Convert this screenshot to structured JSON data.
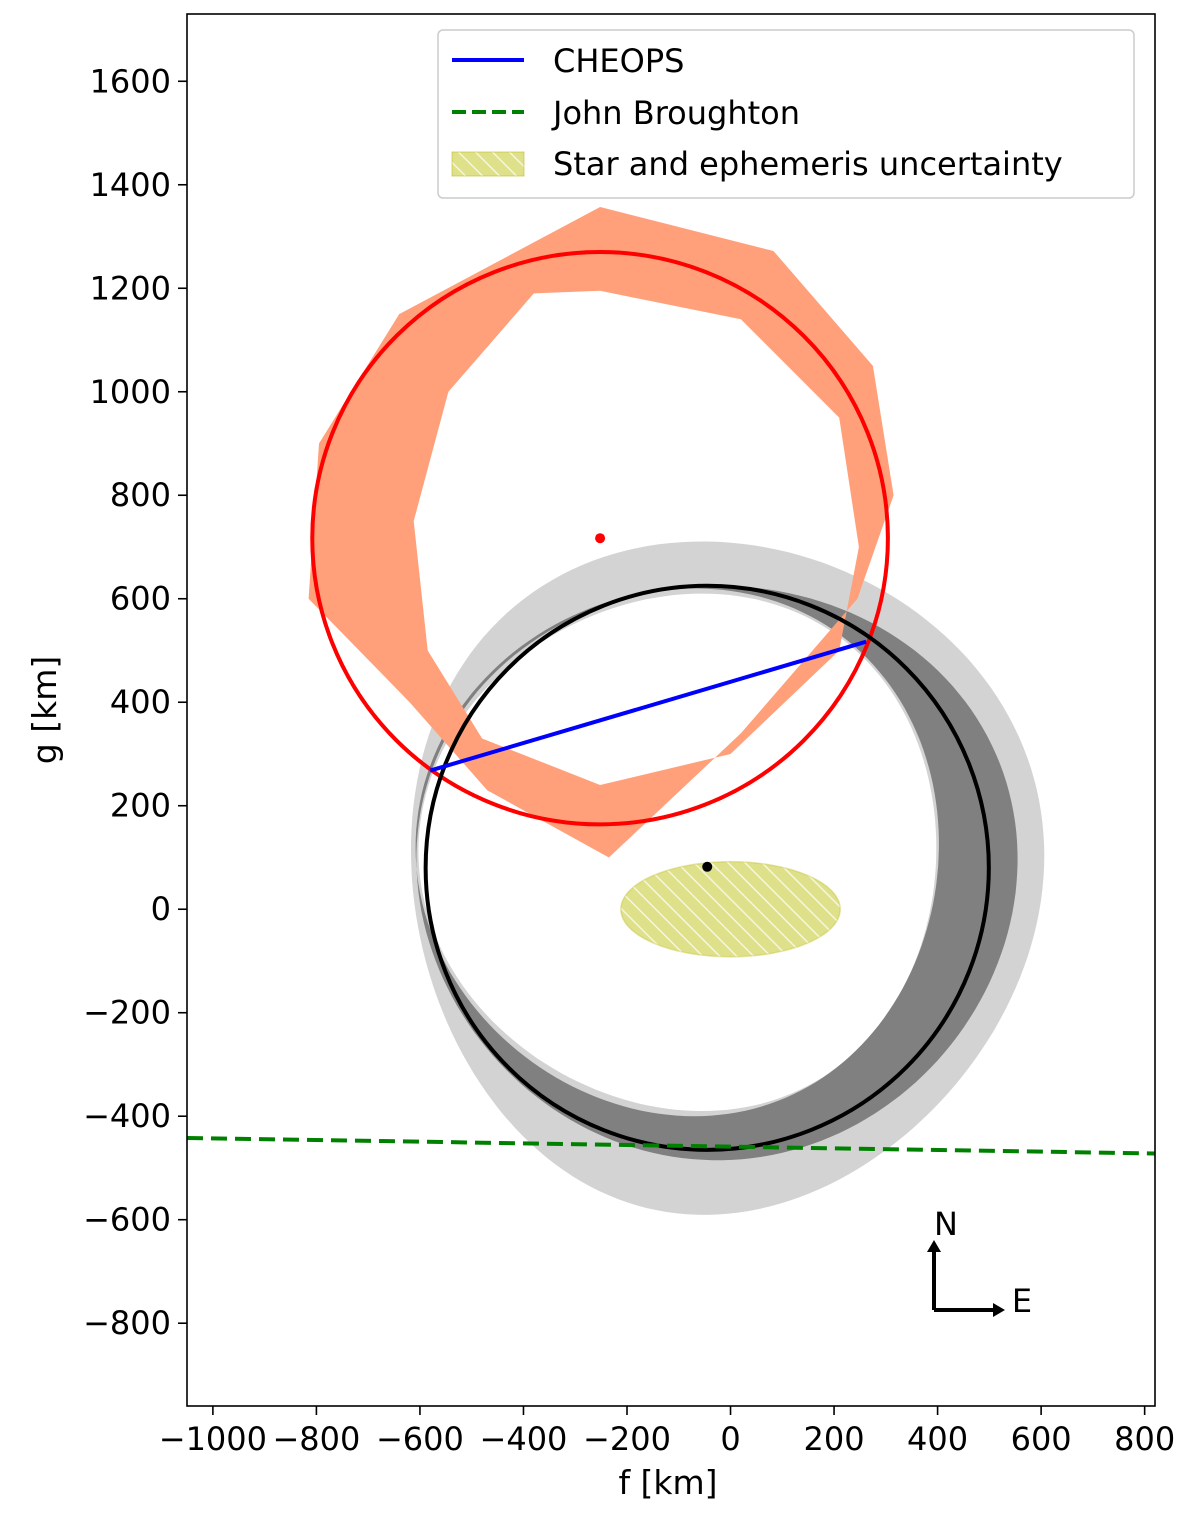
{
  "chart_data": {
    "type": "scatter",
    "title": "",
    "xlabel": "f [km]",
    "ylabel": "g [km]",
    "xlim": [
      -1050,
      820
    ],
    "ylim": [
      -960,
      1730
    ],
    "xticks": [
      -1000,
      -800,
      -600,
      -400,
      -200,
      0,
      200,
      400,
      600,
      800
    ],
    "yticks": [
      -800,
      -600,
      -400,
      -200,
      0,
      200,
      400,
      600,
      800,
      1000,
      1200,
      1400,
      1600
    ],
    "grid": false,
    "legend_position": "top-center",
    "legend": [
      {
        "label": "CHEOPS",
        "style": "solid-line",
        "color": "#0000ff"
      },
      {
        "label": "John Broughton",
        "style": "dashed-line",
        "color": "#008000"
      },
      {
        "label": "Star and ephemeris uncertainty",
        "style": "hatched-patch",
        "color": "#bcbd22"
      }
    ],
    "series": [
      {
        "name": "CHEOPS",
        "kind": "line",
        "color": "#0000ff",
        "x": [
          -580,
          262
        ],
        "y": [
          268,
          517
        ]
      },
      {
        "name": "John Broughton",
        "kind": "dashed-line",
        "color": "#008000",
        "x": [
          -1050,
          820
        ],
        "y": [
          -442,
          -472
        ]
      },
      {
        "name": "Star and ephemeris uncertainty",
        "kind": "ellipse",
        "color": "#bcbd22",
        "center": [
          0,
          0
        ],
        "semi_axes": [
          212,
          92
        ]
      }
    ],
    "fits": [
      {
        "kind": "ellipse",
        "color": "#ff0000",
        "center": [
          -252,
          717
        ],
        "semi_axes": [
          556,
          553
        ],
        "rotation_deg": 0,
        "band_color": "#ffa07a",
        "band_outer": [
          [
            -252,
            1357
          ],
          [
            83,
            1272
          ],
          [
            275,
            1050
          ],
          [
            315,
            800
          ],
          [
            245,
            600
          ],
          [
            20,
            340
          ],
          [
            -235,
            100
          ],
          [
            -470,
            230
          ],
          [
            -620,
            400
          ],
          [
            -815,
            600
          ],
          [
            -795,
            900
          ],
          [
            -640,
            1150
          ],
          [
            -252,
            1357
          ]
        ],
        "band_inner": [
          [
            -252,
            1195
          ],
          [
            20,
            1140
          ],
          [
            210,
            950
          ],
          [
            248,
            700
          ],
          [
            210,
            500
          ],
          [
            0,
            300
          ],
          [
            -252,
            240
          ],
          [
            -480,
            330
          ],
          [
            -585,
            500
          ],
          [
            -612,
            750
          ],
          [
            -545,
            1000
          ],
          [
            -380,
            1190
          ],
          [
            -252,
            1195
          ]
        ]
      },
      {
        "kind": "ellipse",
        "color": "#000000",
        "center": [
          -45,
          80
        ],
        "semi_axes": [
          544,
          545
        ],
        "rotation_deg": 0,
        "band_color": "#808080",
        "band_light_color": "#d3d3d3"
      }
    ],
    "points": [
      {
        "x": -252,
        "y": 717,
        "color": "#ff0000"
      },
      {
        "x": -45,
        "y": 82,
        "color": "#000000"
      }
    ],
    "annotations": [
      {
        "text": "N",
        "kind": "compass-north"
      },
      {
        "text": "E",
        "kind": "compass-east"
      }
    ]
  }
}
